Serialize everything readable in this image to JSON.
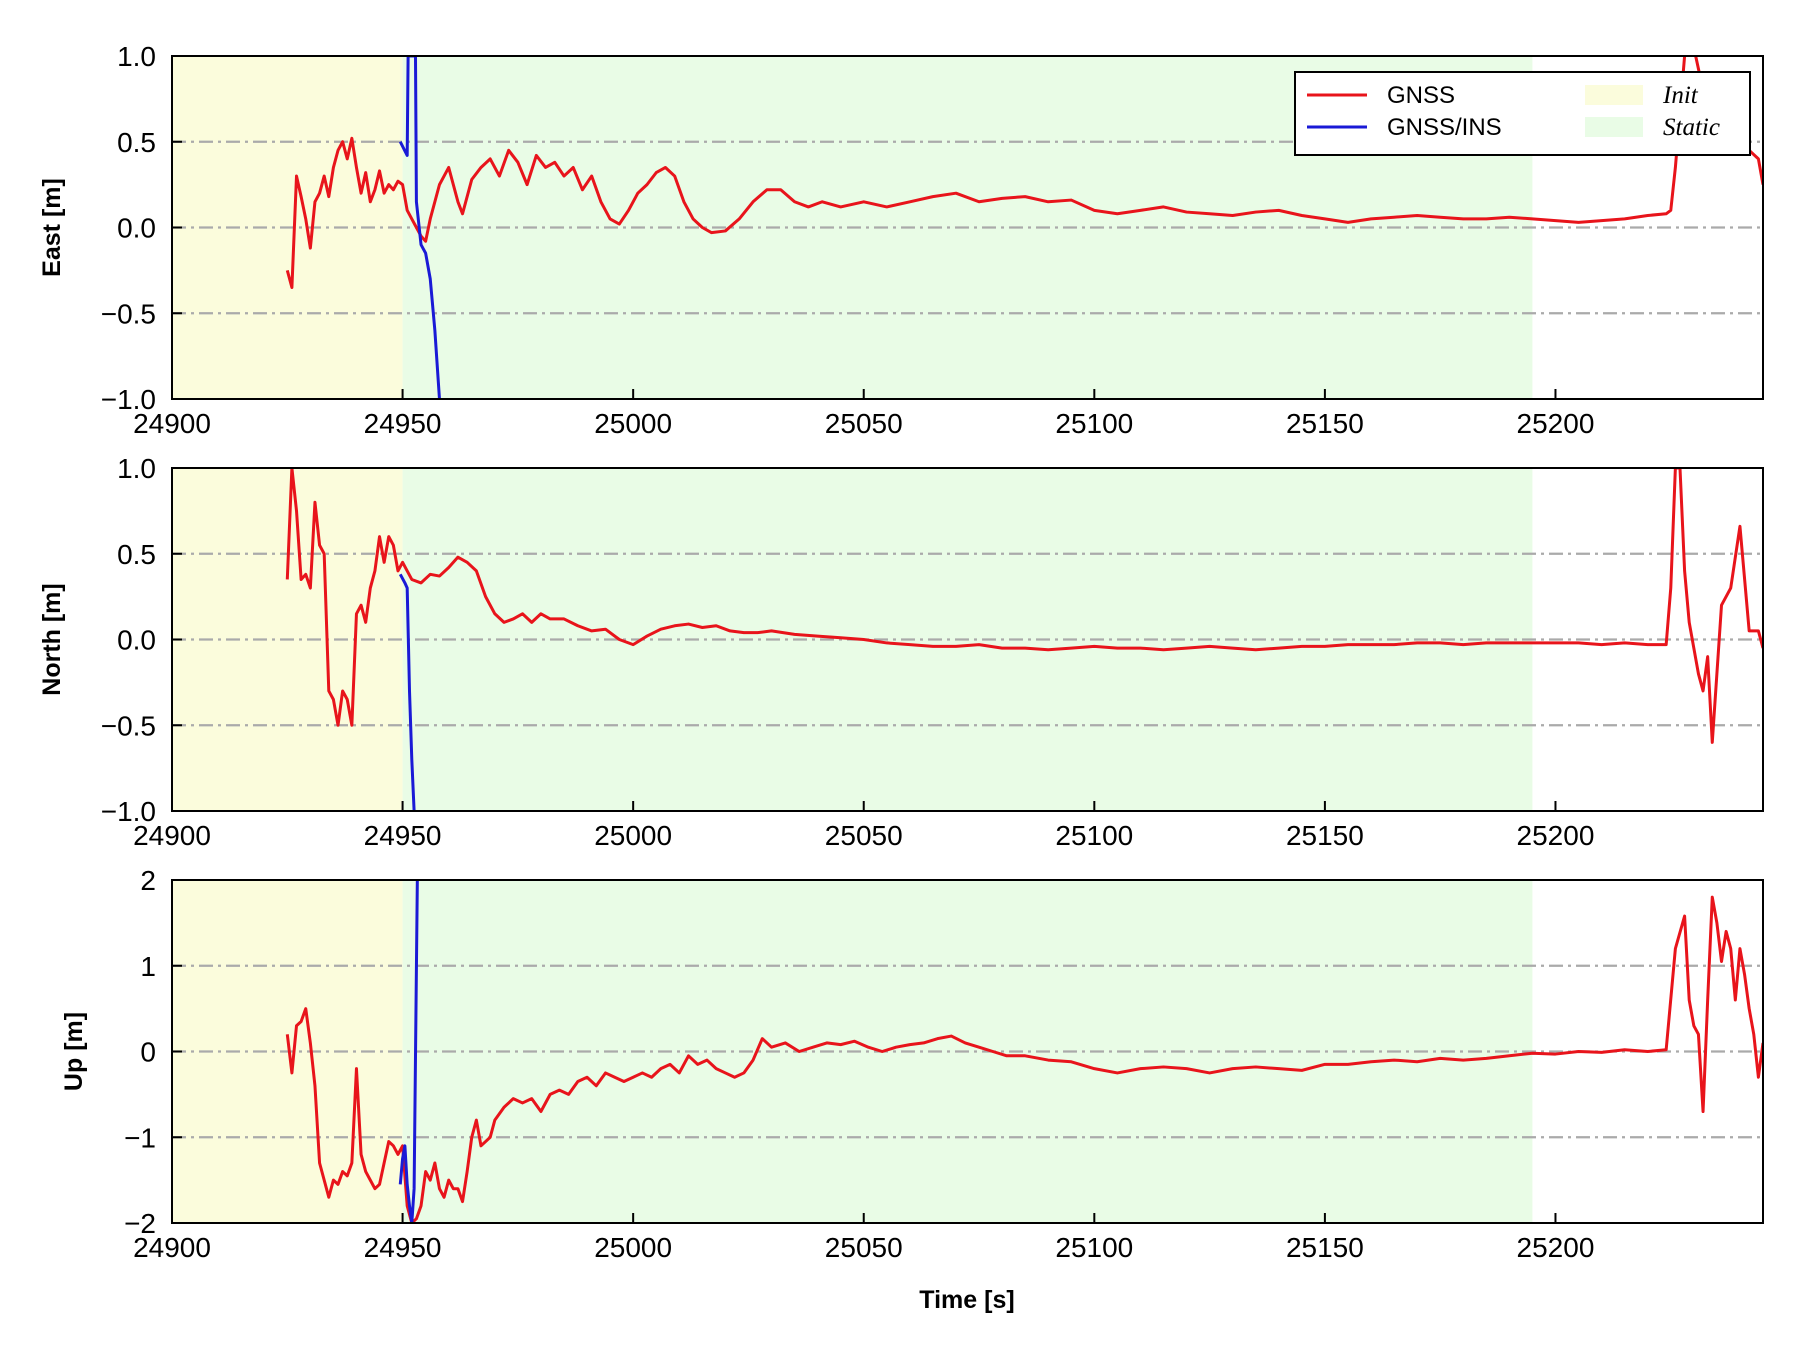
{
  "colors": {
    "gnss": "#e8141b",
    "gnss_ins": "#1a1ad6",
    "init_region": "#fbfcdc",
    "static_region": "#e9fce6",
    "grid": "#aaaaaa",
    "axes": "#000000"
  },
  "chart_data": [
    {
      "type": "line",
      "ylabel": "East [m]",
      "xlim": [
        24900,
        25245
      ],
      "ylim": [
        -1.0,
        1.0
      ],
      "xticks": [
        "24900",
        "24950",
        "25000",
        "25050",
        "25100",
        "25150",
        "25200"
      ],
      "yticks": [
        "1.0",
        "0.5",
        "0.0",
        "−0.5",
        "−1.0"
      ],
      "regions": [
        {
          "name": "Init",
          "x0": 24900,
          "x1": 24950
        },
        {
          "name": "Static",
          "x0": 24950,
          "x1": 25195
        }
      ],
      "legend": {
        "placement": "top-right",
        "entries": [
          {
            "label": "GNSS",
            "kind": "line",
            "color_key": "gnss"
          },
          {
            "label": "GNSS/INS",
            "kind": "line",
            "color_key": "gnss_ins"
          },
          {
            "label": "Init",
            "kind": "patch",
            "color_key": "init_region"
          },
          {
            "label": "Static",
            "kind": "patch",
            "color_key": "static_region"
          }
        ]
      },
      "series": [
        {
          "name": "GNSS",
          "color_key": "gnss",
          "x": [
            24925,
            24926,
            24927,
            24928,
            24929,
            24930,
            24931,
            24932,
            24933,
            24934,
            24935,
            24936,
            24937,
            24938,
            24939,
            24940,
            24941,
            24942,
            24943,
            24944,
            24945,
            24946,
            24947,
            24948,
            24949,
            24950,
            24951,
            24952,
            24953,
            24954,
            24955,
            24956,
            24957,
            24958,
            24959,
            24960,
            24961,
            24962,
            24963,
            24965,
            24967,
            24969,
            24971,
            24973,
            24975,
            24977,
            24979,
            24981,
            24983,
            24985,
            24987,
            24989,
            24991,
            24993,
            24995,
            24997,
            24999,
            25001,
            25003,
            25005,
            25007,
            25009,
            25011,
            25013,
            25015,
            25017,
            25020,
            25023,
            25026,
            25029,
            25032,
            25035,
            25038,
            25041,
            25045,
            25050,
            25055,
            25060,
            25065,
            25070,
            25075,
            25080,
            25085,
            25090,
            25095,
            25100,
            25105,
            25110,
            25115,
            25120,
            25125,
            25130,
            25135,
            25140,
            25145,
            25150,
            25155,
            25160,
            25165,
            25170,
            25175,
            25180,
            25185,
            25190,
            25195,
            25200,
            25205,
            25210,
            25215,
            25220,
            25224,
            25225,
            25226,
            25228,
            25230,
            25232,
            25234,
            25236,
            25238,
            25240,
            25242,
            25244,
            25245
          ],
          "y": [
            -0.25,
            -0.35,
            0.3,
            0.18,
            0.05,
            -0.12,
            0.15,
            0.2,
            0.3,
            0.18,
            0.35,
            0.45,
            0.5,
            0.4,
            0.52,
            0.35,
            0.2,
            0.32,
            0.15,
            0.22,
            0.33,
            0.2,
            0.25,
            0.22,
            0.27,
            0.25,
            0.1,
            0.05,
            0.0,
            -0.05,
            -0.08,
            0.05,
            0.15,
            0.25,
            0.3,
            0.35,
            0.25,
            0.15,
            0.08,
            0.28,
            0.35,
            0.4,
            0.3,
            0.45,
            0.38,
            0.25,
            0.42,
            0.35,
            0.38,
            0.3,
            0.35,
            0.22,
            0.3,
            0.15,
            0.05,
            0.02,
            0.1,
            0.2,
            0.25,
            0.32,
            0.35,
            0.3,
            0.15,
            0.05,
            0.0,
            -0.03,
            -0.02,
            0.05,
            0.15,
            0.22,
            0.22,
            0.15,
            0.12,
            0.15,
            0.12,
            0.15,
            0.12,
            0.15,
            0.18,
            0.2,
            0.15,
            0.17,
            0.18,
            0.15,
            0.16,
            0.1,
            0.08,
            0.1,
            0.12,
            0.09,
            0.08,
            0.07,
            0.09,
            0.1,
            0.07,
            0.05,
            0.03,
            0.05,
            0.06,
            0.07,
            0.06,
            0.05,
            0.05,
            0.06,
            0.05,
            0.04,
            0.03,
            0.04,
            0.05,
            0.07,
            0.08,
            0.1,
            0.35,
            1.0,
            1.05,
            0.8,
            0.65,
            0.45,
            0.65,
            0.5,
            0.45,
            0.4,
            0.25
          ]
        },
        {
          "name": "GNSS/INS",
          "color_key": "gnss_ins",
          "x": [
            24949.5,
            24951,
            24951.2,
            24952.8,
            24953,
            24954,
            24955,
            24956,
            24957,
            24958
          ],
          "y": [
            0.5,
            0.42,
            1.0,
            1.0,
            0.15,
            -0.1,
            -0.15,
            -0.3,
            -0.6,
            -1.0
          ]
        }
      ]
    },
    {
      "type": "line",
      "ylabel": "North [m]",
      "xlim": [
        24900,
        25245
      ],
      "ylim": [
        -1.0,
        1.0
      ],
      "xticks": [
        "24900",
        "24950",
        "25000",
        "25050",
        "25100",
        "25150",
        "25200"
      ],
      "yticks": [
        "1.0",
        "0.5",
        "0.0",
        "−0.5",
        "−1.0"
      ],
      "regions": [
        {
          "name": "Init",
          "x0": 24900,
          "x1": 24950
        },
        {
          "name": "Static",
          "x0": 24950,
          "x1": 25195
        }
      ],
      "series": [
        {
          "name": "GNSS",
          "color_key": "gnss",
          "x": [
            24925,
            24926,
            24927,
            24928,
            24929,
            24930,
            24931,
            24932,
            24933,
            24934,
            24935,
            24936,
            24937,
            24938,
            24939,
            24940,
            24941,
            24942,
            24943,
            24944,
            24945,
            24946,
            24947,
            24948,
            24949,
            24950,
            24951,
            24952,
            24954,
            24956,
            24958,
            24960,
            24962,
            24964,
            24966,
            24968,
            24970,
            24972,
            24974,
            24976,
            24978,
            24980,
            24982,
            24985,
            24988,
            24991,
            24994,
            24997,
            25000,
            25003,
            25006,
            25009,
            25012,
            25015,
            25018,
            25021,
            25024,
            25027,
            25030,
            25035,
            25040,
            25045,
            25050,
            25055,
            25060,
            25065,
            25070,
            25075,
            25080,
            25085,
            25090,
            25095,
            25100,
            25105,
            25110,
            25115,
            25120,
            25125,
            25130,
            25135,
            25140,
            25145,
            25150,
            25155,
            25160,
            25165,
            25170,
            25175,
            25180,
            25185,
            25190,
            25195,
            25200,
            25205,
            25210,
            25215,
            25220,
            25224,
            25225,
            25226,
            25227,
            25228,
            25229,
            25230,
            25231,
            25232,
            25233,
            25234,
            25236,
            25238,
            25240,
            25242,
            25244,
            25245
          ],
          "y": [
            0.35,
            1.0,
            0.75,
            0.35,
            0.38,
            0.3,
            0.8,
            0.55,
            0.5,
            -0.3,
            -0.35,
            -0.5,
            -0.3,
            -0.35,
            -0.5,
            0.15,
            0.2,
            0.1,
            0.3,
            0.4,
            0.6,
            0.45,
            0.6,
            0.55,
            0.4,
            0.45,
            0.4,
            0.35,
            0.33,
            0.38,
            0.37,
            0.42,
            0.48,
            0.45,
            0.4,
            0.25,
            0.15,
            0.1,
            0.12,
            0.15,
            0.1,
            0.15,
            0.12,
            0.12,
            0.08,
            0.05,
            0.06,
            0.0,
            -0.03,
            0.02,
            0.06,
            0.08,
            0.09,
            0.07,
            0.08,
            0.05,
            0.04,
            0.04,
            0.05,
            0.03,
            0.02,
            0.01,
            0.0,
            -0.02,
            -0.03,
            -0.04,
            -0.04,
            -0.03,
            -0.05,
            -0.05,
            -0.06,
            -0.05,
            -0.04,
            -0.05,
            -0.05,
            -0.06,
            -0.05,
            -0.04,
            -0.05,
            -0.06,
            -0.05,
            -0.04,
            -0.04,
            -0.03,
            -0.03,
            -0.03,
            -0.02,
            -0.02,
            -0.03,
            -0.02,
            -0.02,
            -0.02,
            -0.02,
            -0.02,
            -0.03,
            -0.02,
            -0.03,
            -0.03,
            0.3,
            1.0,
            1.0,
            0.4,
            0.1,
            -0.05,
            -0.2,
            -0.3,
            -0.1,
            -0.6,
            0.2,
            0.3,
            0.66,
            0.05,
            0.05,
            -0.05
          ]
        },
        {
          "name": "GNSS/INS",
          "color_key": "gnss_ins",
          "x": [
            24949.5,
            24950.5,
            24951,
            24951.5,
            24952,
            24952.5
          ],
          "y": [
            0.38,
            0.33,
            0.3,
            -0.3,
            -0.7,
            -1.0
          ]
        }
      ]
    },
    {
      "type": "line",
      "xlabel": "Time [s]",
      "ylabel": "Up [m]",
      "xlim": [
        24900,
        25245
      ],
      "ylim": [
        -2,
        2
      ],
      "xticks": [
        "24900",
        "24950",
        "25000",
        "25050",
        "25100",
        "25150",
        "25200"
      ],
      "yticks": [
        "2",
        "1",
        "0",
        "−1",
        "−2"
      ],
      "regions": [
        {
          "name": "Init",
          "x0": 24900,
          "x1": 24950
        },
        {
          "name": "Static",
          "x0": 24950,
          "x1": 25195
        }
      ],
      "series": [
        {
          "name": "GNSS",
          "color_key": "gnss",
          "x": [
            24925,
            24926,
            24927,
            24928,
            24929,
            24930,
            24931,
            24932,
            24933,
            24934,
            24935,
            24936,
            24937,
            24938,
            24939,
            24940,
            24941,
            24942,
            24943,
            24944,
            24945,
            24946,
            24947,
            24948,
            24949,
            24950,
            24951,
            24952,
            24953,
            24954,
            24955,
            24956,
            24957,
            24958,
            24959,
            24960,
            24961,
            24962,
            24963,
            24964,
            24965,
            24966,
            24967,
            24968,
            24969,
            24970,
            24972,
            24974,
            24976,
            24978,
            24980,
            24982,
            24984,
            24986,
            24988,
            24990,
            24992,
            24994,
            24996,
            24998,
            25000,
            25002,
            25004,
            25006,
            25008,
            25010,
            25012,
            25014,
            25016,
            25018,
            25020,
            25022,
            25024,
            25026,
            25028,
            25030,
            25033,
            25036,
            25039,
            25042,
            25045,
            25048,
            25051,
            25054,
            25057,
            25060,
            25063,
            25066,
            25069,
            25072,
            25075,
            25078,
            25081,
            25085,
            25090,
            25095,
            25100,
            25105,
            25110,
            25115,
            25120,
            25125,
            25130,
            25135,
            25140,
            25145,
            25150,
            25155,
            25160,
            25165,
            25170,
            25175,
            25180,
            25185,
            25190,
            25195,
            25200,
            25205,
            25210,
            25215,
            25220,
            25224,
            25226,
            25228,
            25229,
            25230,
            25231,
            25232,
            25233,
            25234,
            25235,
            25236,
            25237,
            25238,
            25239,
            25240,
            25241,
            25242,
            25243,
            25244,
            25245
          ],
          "y": [
            0.2,
            -0.25,
            0.3,
            0.35,
            0.5,
            0.1,
            -0.4,
            -1.3,
            -1.5,
            -1.7,
            -1.5,
            -1.55,
            -1.4,
            -1.45,
            -1.3,
            -0.2,
            -1.2,
            -1.4,
            -1.5,
            -1.6,
            -1.55,
            -1.3,
            -1.05,
            -1.1,
            -1.2,
            -1.1,
            -1.8,
            -2.0,
            -1.95,
            -1.8,
            -1.4,
            -1.5,
            -1.3,
            -1.6,
            -1.7,
            -1.5,
            -1.6,
            -1.6,
            -1.75,
            -1.4,
            -1.0,
            -0.8,
            -1.1,
            -1.05,
            -1.0,
            -0.8,
            -0.65,
            -0.55,
            -0.6,
            -0.55,
            -0.7,
            -0.5,
            -0.45,
            -0.5,
            -0.35,
            -0.3,
            -0.4,
            -0.25,
            -0.3,
            -0.35,
            -0.3,
            -0.25,
            -0.3,
            -0.2,
            -0.15,
            -0.25,
            -0.05,
            -0.15,
            -0.1,
            -0.2,
            -0.25,
            -0.3,
            -0.25,
            -0.1,
            0.15,
            0.05,
            0.1,
            0.0,
            0.05,
            0.1,
            0.08,
            0.12,
            0.05,
            0.0,
            0.05,
            0.08,
            0.1,
            0.15,
            0.18,
            0.1,
            0.05,
            0.0,
            -0.05,
            -0.05,
            -0.1,
            -0.12,
            -0.2,
            -0.25,
            -0.2,
            -0.18,
            -0.2,
            -0.25,
            -0.2,
            -0.18,
            -0.2,
            -0.22,
            -0.15,
            -0.15,
            -0.12,
            -0.1,
            -0.12,
            -0.08,
            -0.1,
            -0.08,
            -0.05,
            -0.02,
            -0.03,
            0.0,
            -0.01,
            0.02,
            0.0,
            0.02,
            1.2,
            1.58,
            0.6,
            0.3,
            0.2,
            -0.7,
            0.6,
            1.8,
            1.5,
            1.05,
            1.4,
            1.2,
            0.6,
            1.2,
            0.9,
            0.5,
            0.2,
            -0.3,
            0.1
          ]
        },
        {
          "name": "GNSS/INS",
          "color_key": "gnss_ins",
          "x": [
            24949.5,
            24950,
            24950.5,
            24951,
            24951.5,
            24952,
            24952.5,
            24953.2,
            24953.5
          ],
          "y": [
            -1.55,
            -1.25,
            -1.1,
            -1.55,
            -1.8,
            -2.0,
            -1.6,
            2.0,
            2.0
          ]
        }
      ]
    }
  ]
}
